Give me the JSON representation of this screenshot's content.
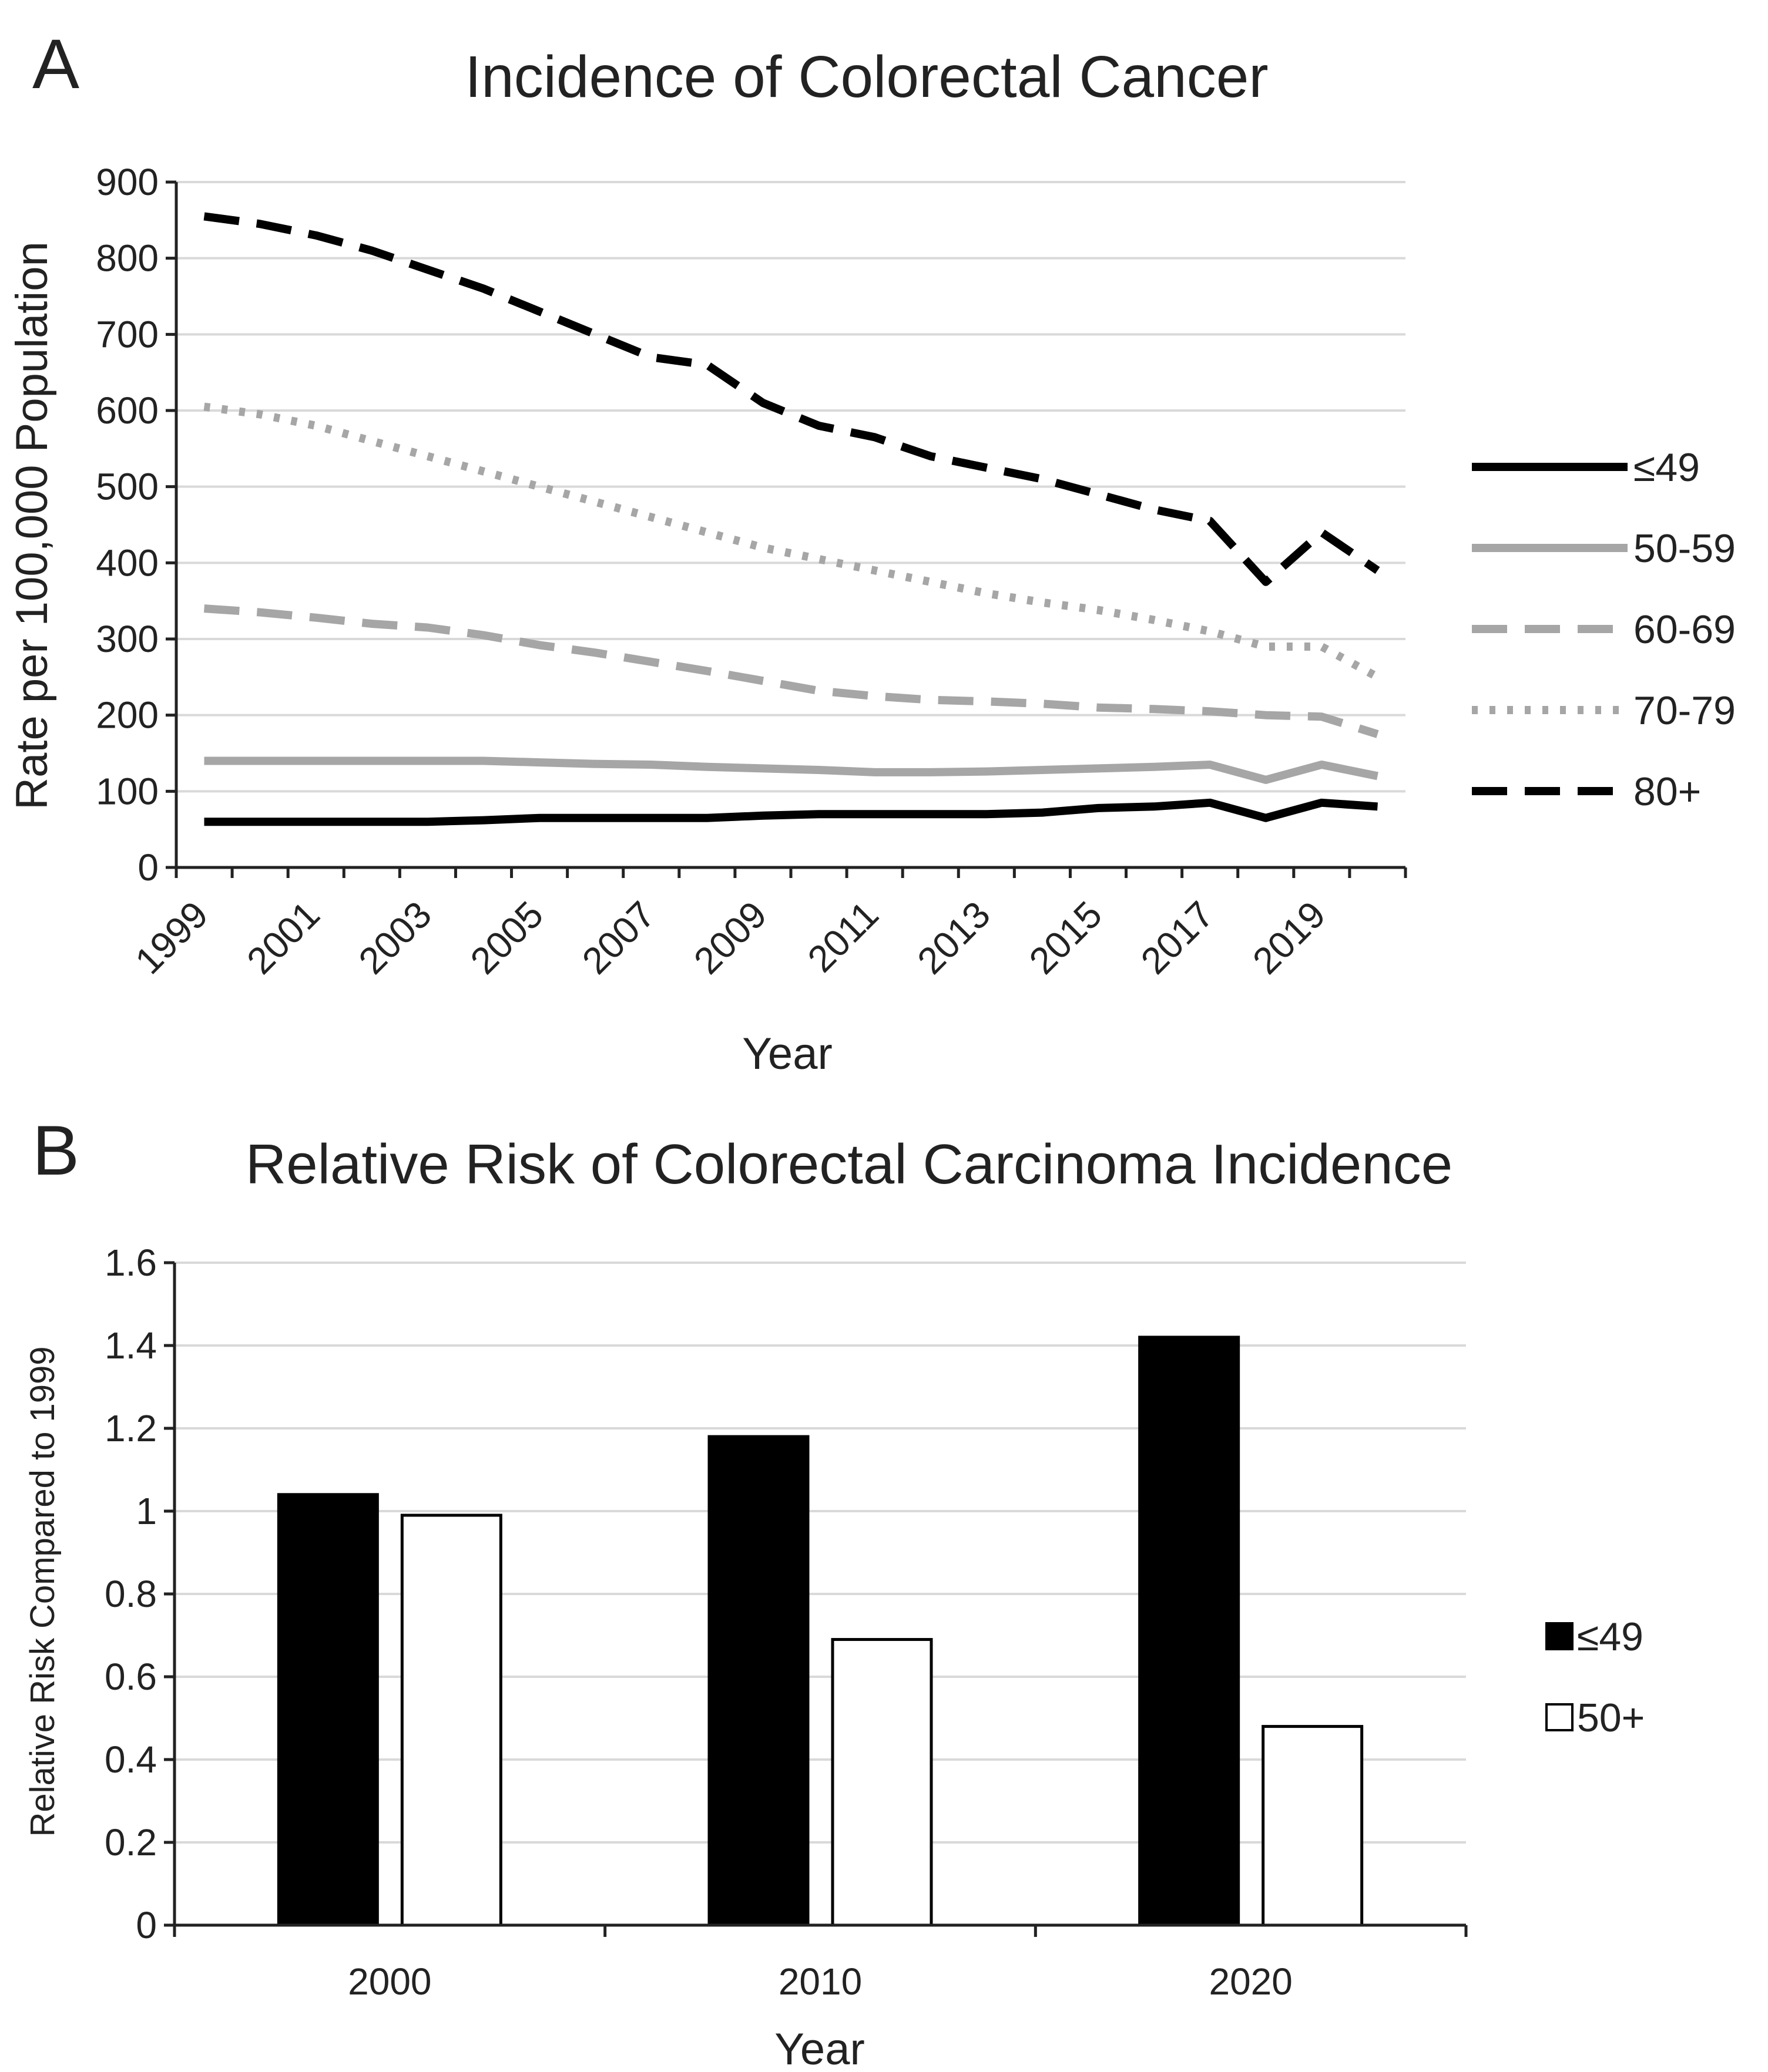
{
  "chart_data": [
    {
      "panel": "A",
      "type": "line",
      "title": "Incidence of Colorectal Cancer",
      "xlabel": "Year",
      "ylabel": "Rate per 100,000 Population",
      "ylim": [
        0,
        900
      ],
      "yticks": [
        0,
        100,
        200,
        300,
        400,
        500,
        600,
        700,
        800,
        900
      ],
      "x": [
        1999,
        2000,
        2001,
        2002,
        2003,
        2004,
        2005,
        2006,
        2007,
        2008,
        2009,
        2010,
        2011,
        2012,
        2013,
        2014,
        2015,
        2016,
        2017,
        2018,
        2019,
        2020
      ],
      "xtick_labels": [
        "1999",
        "2001",
        "2003",
        "2005",
        "2007",
        "2009",
        "2011",
        "2013",
        "2015",
        "2017",
        "2019"
      ],
      "grid": true,
      "legend_position": "right",
      "series": [
        {
          "name": "≤49",
          "color": "#000000",
          "style": "solid",
          "values": [
            60,
            60,
            60,
            60,
            60,
            62,
            65,
            65,
            65,
            65,
            68,
            70,
            70,
            70,
            70,
            72,
            78,
            80,
            85,
            65,
            85,
            80
          ]
        },
        {
          "name": "50-59",
          "color": "#a6a6a6",
          "style": "solid",
          "values": [
            140,
            140,
            140,
            140,
            140,
            140,
            138,
            136,
            135,
            132,
            130,
            128,
            125,
            125,
            126,
            128,
            130,
            132,
            135,
            115,
            135,
            120
          ]
        },
        {
          "name": "60-69",
          "color": "#a6a6a6",
          "style": "dashed",
          "values": [
            340,
            335,
            328,
            320,
            315,
            305,
            292,
            282,
            270,
            258,
            245,
            232,
            225,
            220,
            218,
            215,
            210,
            208,
            205,
            200,
            198,
            175
          ]
        },
        {
          "name": "70-79",
          "color": "#a6a6a6",
          "style": "dotted",
          "values": [
            605,
            595,
            580,
            560,
            540,
            520,
            500,
            480,
            460,
            440,
            420,
            405,
            390,
            375,
            360,
            348,
            338,
            325,
            310,
            290,
            290,
            250
          ]
        },
        {
          "name": "80+",
          "color": "#000000",
          "style": "dashed",
          "values": [
            855,
            845,
            830,
            810,
            785,
            760,
            730,
            700,
            670,
            660,
            610,
            580,
            565,
            540,
            525,
            510,
            490,
            470,
            455,
            375,
            440,
            390
          ]
        }
      ]
    },
    {
      "panel": "B",
      "type": "bar",
      "title": "Relative Risk of Colorectal Carcinoma Incidence",
      "xlabel": "Year",
      "ylabel": "Relative Risk Compared to 1999",
      "ylim": [
        0,
        1.6
      ],
      "yticks": [
        0,
        0.2,
        0.4,
        0.6,
        0.8,
        1,
        1.2,
        1.4,
        1.6
      ],
      "categories": [
        "2000",
        "2010",
        "2020"
      ],
      "grid": true,
      "legend_position": "right",
      "series": [
        {
          "name": "≤49",
          "color": "#000000",
          "values": [
            1.04,
            1.18,
            1.42
          ]
        },
        {
          "name": "50+",
          "color": "#ffffff",
          "values": [
            0.99,
            0.69,
            0.48
          ]
        }
      ]
    }
  ]
}
